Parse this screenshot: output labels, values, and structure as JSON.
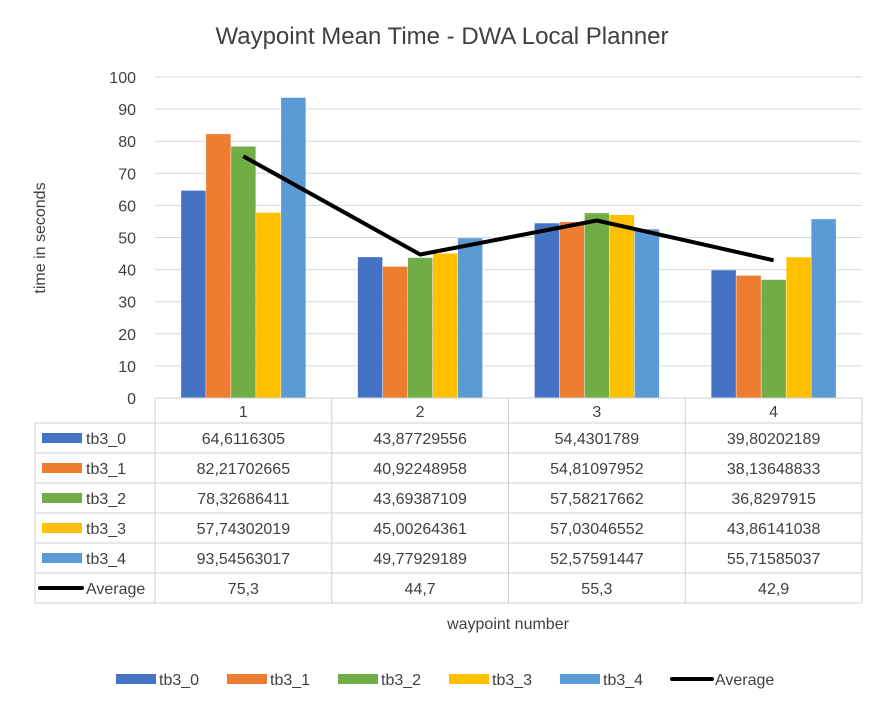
{
  "chart_data": {
    "type": "bar",
    "title": "Waypoint Mean Time - DWA Local Planner",
    "xlabel": "waypoint number",
    "ylabel": "time in seconds",
    "ylim": [
      0,
      100
    ],
    "ytick_step": 10,
    "yticks": [
      "0",
      "10",
      "20",
      "30",
      "40",
      "50",
      "60",
      "70",
      "80",
      "90",
      "100"
    ],
    "grid": true,
    "legend": "bottom",
    "categories": [
      "1",
      "2",
      "3",
      "4"
    ],
    "series": [
      {
        "name": "tb3_0",
        "type": "bar",
        "color": "#4472c4",
        "values": [
          64.6116305,
          43.87729556,
          54.4301789,
          39.80202189
        ],
        "labels": [
          "64,6116305",
          "43,87729556",
          "54,4301789",
          "39,80202189"
        ]
      },
      {
        "name": "tb3_1",
        "type": "bar",
        "color": "#ed7d31",
        "values": [
          82.21702665,
          40.92248958,
          54.81097952,
          38.13648833
        ],
        "labels": [
          "82,21702665",
          "40,92248958",
          "54,81097952",
          "38,13648833"
        ]
      },
      {
        "name": "tb3_2",
        "type": "bar",
        "color": "#70ad47",
        "values": [
          78.32686411,
          43.69387109,
          57.58217662,
          36.8297915
        ],
        "labels": [
          "78,32686411",
          "43,69387109",
          "57,58217662",
          "36,8297915"
        ]
      },
      {
        "name": "tb3_3",
        "type": "bar",
        "color": "#ffc000",
        "values": [
          57.74302019,
          45.00264361,
          57.03046552,
          43.86141038
        ],
        "labels": [
          "57,74302019",
          "45,00264361",
          "57,03046552",
          "43,86141038"
        ]
      },
      {
        "name": "tb3_4",
        "type": "bar",
        "color": "#5b9bd5",
        "values": [
          93.54563017,
          49.77929189,
          52.57591447,
          55.71585037
        ],
        "labels": [
          "93,54563017",
          "49,77929189",
          "52,57591447",
          "55,71585037"
        ]
      },
      {
        "name": "Average",
        "type": "line",
        "color": "#000000",
        "values": [
          75.3,
          44.7,
          55.3,
          42.9
        ],
        "labels": [
          "75,3",
          "44,7",
          "55,3",
          "42,9"
        ]
      }
    ]
  }
}
